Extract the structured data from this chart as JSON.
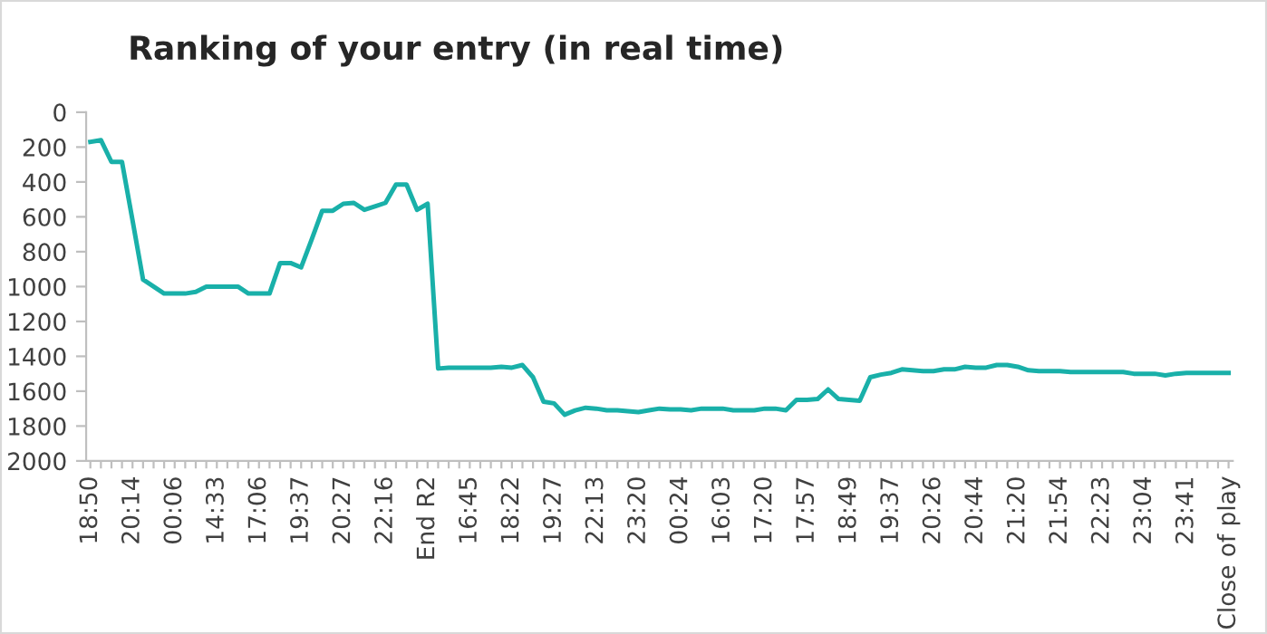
{
  "chart_data": {
    "type": "line",
    "title": "Ranking of your entry (in real time)",
    "categories": [
      "18:50",
      null,
      null,
      null,
      "20:14",
      null,
      null,
      null,
      "00:06",
      null,
      null,
      null,
      "14:33",
      null,
      null,
      null,
      "17:06",
      null,
      null,
      null,
      "19:37",
      null,
      null,
      null,
      "20:27",
      null,
      null,
      null,
      "22:16",
      null,
      null,
      null,
      "End R2",
      null,
      null,
      null,
      "16:45",
      null,
      null,
      null,
      "18:22",
      null,
      null,
      null,
      "19:27",
      null,
      null,
      null,
      "22:13",
      null,
      null,
      null,
      "23:20",
      null,
      null,
      null,
      "00:24",
      null,
      null,
      null,
      "16:03",
      null,
      null,
      null,
      "17:20",
      null,
      null,
      null,
      "17:57",
      null,
      null,
      null,
      "18:49",
      null,
      null,
      null,
      "19:37",
      null,
      null,
      null,
      "20:26",
      null,
      null,
      null,
      "20:44",
      null,
      null,
      null,
      "21:20",
      null,
      null,
      null,
      "21:54",
      null,
      null,
      null,
      "22:23",
      null,
      null,
      null,
      "23:04",
      null,
      null,
      null,
      "23:41",
      null,
      null,
      null,
      "Close of play"
    ],
    "series": [
      {
        "color": "#19b0a9",
        "values": [
          170,
          160,
          285,
          285,
          620,
          960,
          1000,
          1040,
          1040,
          1040,
          1030,
          1000,
          1000,
          1000,
          1000,
          1040,
          1040,
          1040,
          865,
          865,
          890,
          730,
          565,
          565,
          525,
          520,
          560,
          540,
          520,
          415,
          415,
          560,
          525,
          1470,
          1465,
          1465,
          1465,
          1465,
          1465,
          1460,
          1465,
          1450,
          1520,
          1660,
          1670,
          1735,
          1710,
          1695,
          1700,
          1710,
          1710,
          1715,
          1720,
          1710,
          1700,
          1705,
          1705,
          1710,
          1700,
          1700,
          1700,
          1710,
          1710,
          1710,
          1700,
          1700,
          1710,
          1650,
          1650,
          1645,
          1590,
          1645,
          1650,
          1655,
          1520,
          1505,
          1495,
          1475,
          1480,
          1485,
          1485,
          1475,
          1475,
          1460,
          1465,
          1465,
          1450,
          1450,
          1460,
          1480,
          1485,
          1485,
          1485,
          1490,
          1490,
          1490,
          1490,
          1490,
          1490,
          1500,
          1500,
          1500,
          1510,
          1500,
          1495,
          1495,
          1495,
          1495,
          1495
        ]
      }
    ],
    "ylim": [
      2000,
      0
    ],
    "yticks": [
      0,
      200,
      400,
      600,
      800,
      1000,
      1200,
      1400,
      1600,
      1800,
      2000
    ],
    "grid": false,
    "legend": false,
    "marker": "none",
    "line_style": "solid"
  }
}
